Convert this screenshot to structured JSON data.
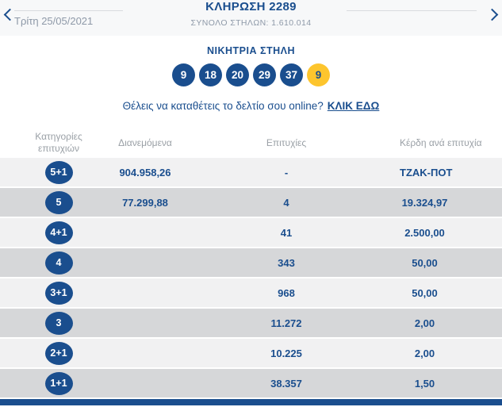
{
  "colors": {
    "primary_blue": "#1a4e8e",
    "joker_yellow": "#fdc52d",
    "row_light": "#f1f1f2",
    "row_dark": "#d6d7d9"
  },
  "header": {
    "title": "ΚΛΗΡΩΣΗ 2289",
    "subtitle": "ΣΥΝΟΛΟ ΣΤΗΛΩΝ: 1.610.014",
    "date": "Τρίτη 25/05/2021",
    "prev_icon": "chevron-left",
    "next_icon": "chevron-right"
  },
  "winning_column": {
    "heading": "ΝΙΚΗΤΡΙΑ ΣΤΗΛΗ",
    "numbers": [
      "9",
      "18",
      "20",
      "29",
      "37"
    ],
    "joker_number": "9"
  },
  "cta": {
    "text": "Θέλεις να καταθέτεις το δελτίο σου online?",
    "link_label": "ΚΛΙΚ ΕΔΩ"
  },
  "table": {
    "headers": [
      "Κατηγορίες επιτυχιών",
      "Διανεμόμενα",
      "Επιτυχίες",
      "Κέρδη ανά επιτυχία"
    ],
    "rows": [
      {
        "category": "5+1",
        "distributed": "904.958,26",
        "winners": "-",
        "prize": "ΤΖΑΚ-ΠΟΤ"
      },
      {
        "category": "5",
        "distributed": "77.299,88",
        "winners": "4",
        "prize": "19.324,97"
      },
      {
        "category": "4+1",
        "distributed": "",
        "winners": "41",
        "prize": "2.500,00"
      },
      {
        "category": "4",
        "distributed": "",
        "winners": "343",
        "prize": "50,00"
      },
      {
        "category": "3+1",
        "distributed": "",
        "winners": "968",
        "prize": "50,00"
      },
      {
        "category": "3",
        "distributed": "",
        "winners": "11.272",
        "prize": "2,00"
      },
      {
        "category": "2+1",
        "distributed": "",
        "winners": "10.225",
        "prize": "2,00"
      },
      {
        "category": "1+1",
        "distributed": "",
        "winners": "38.357",
        "prize": "1,50"
      }
    ]
  }
}
